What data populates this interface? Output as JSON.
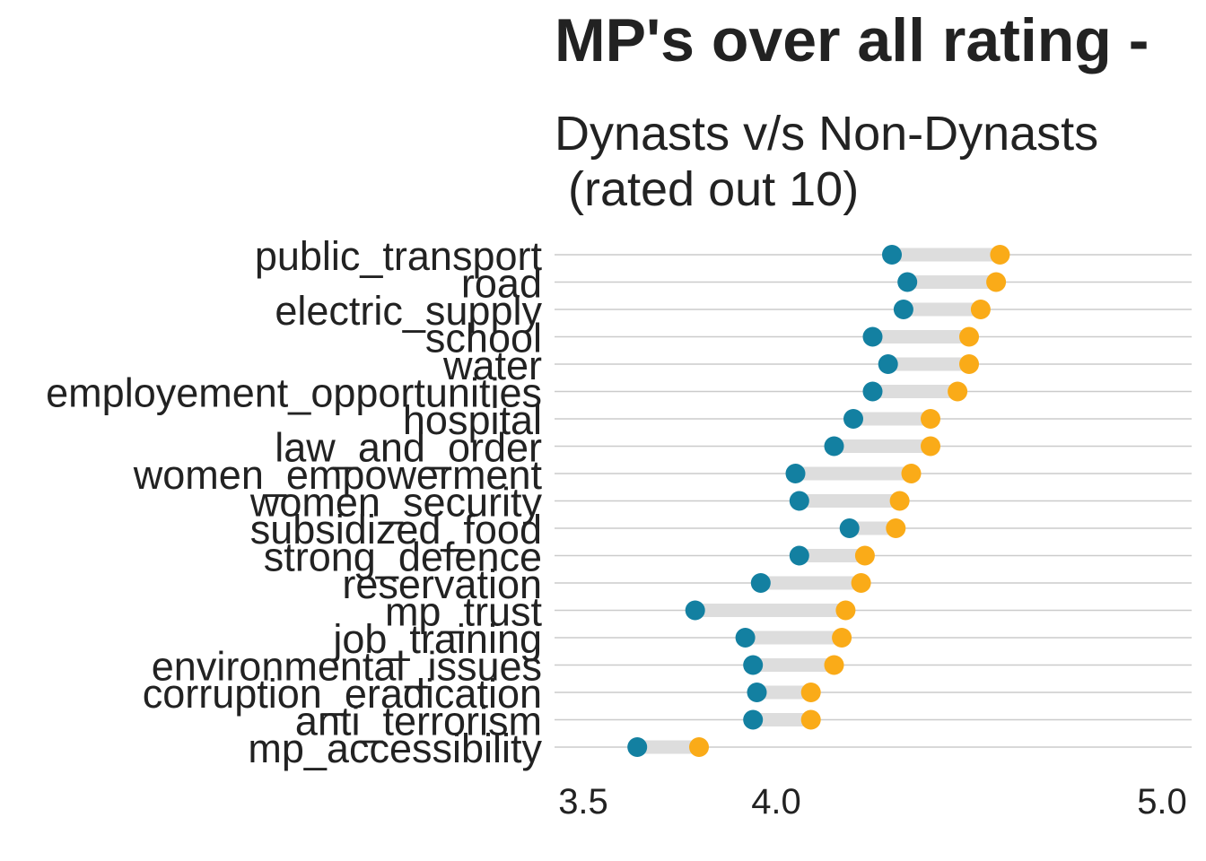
{
  "chart_data": {
    "type": "dumbbell",
    "title": "MP's over all rating - ",
    "subtitle_line1": "Dynasts v/s Non-Dynasts",
    "subtitle_line2": " (rated out 10)",
    "xlabel": "",
    "ylabel": "",
    "xlim": [
      3.5,
      5.0
    ],
    "x_ticks": [
      {
        "value": 3.5,
        "label": "3.5"
      },
      {
        "value": 4.0,
        "label": "4.0"
      },
      {
        "value": 5.0,
        "label": "5.0"
      }
    ],
    "grid": true,
    "categories": [
      "public_transport",
      "road",
      "electric_supply",
      "school",
      "water",
      "employement_opportunities",
      "hospital",
      "law_and_order",
      "women_empowerment",
      "women_security",
      "subsidized_food",
      "strong_defence",
      "reservation",
      "mp_trust",
      "job_training",
      "environmental_issues",
      "corruption_eradication",
      "anti_terrorism",
      "mp_accessibility"
    ],
    "series": [
      {
        "color": "#1380A1",
        "values": [
          4.3,
          4.34,
          4.33,
          4.25,
          4.29,
          4.25,
          4.2,
          4.15,
          4.05,
          4.06,
          4.19,
          4.06,
          3.96,
          3.79,
          3.92,
          3.94,
          3.95,
          3.94,
          3.64
        ]
      },
      {
        "color": "#FAAB18",
        "values": [
          4.58,
          4.57,
          4.53,
          4.5,
          4.5,
          4.47,
          4.4,
          4.4,
          4.35,
          4.32,
          4.31,
          4.23,
          4.22,
          4.18,
          4.17,
          4.15,
          4.09,
          4.09,
          3.8
        ]
      }
    ],
    "colors": {
      "connector": "#DDDDDD",
      "grid": "#CBCBCB",
      "text": "#222222"
    }
  }
}
